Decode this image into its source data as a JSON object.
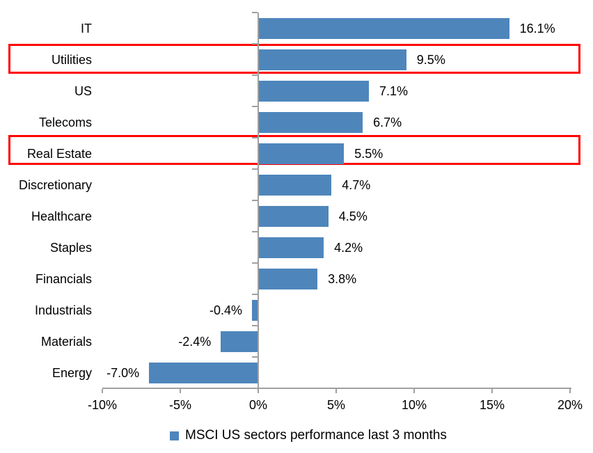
{
  "chart_data": {
    "type": "bar",
    "orientation": "horizontal",
    "title": "",
    "categories": [
      "IT",
      "Utilities",
      "US",
      "Telecoms",
      "Real Estate",
      "Discretionary",
      "Healthcare",
      "Staples",
      "Financials",
      "Industrials",
      "Materials",
      "Energy"
    ],
    "values": [
      16.1,
      9.5,
      7.1,
      6.7,
      5.5,
      4.7,
      4.5,
      4.2,
      3.8,
      -0.4,
      -2.4,
      -7.0
    ],
    "value_labels": [
      "16.1%",
      "9.5%",
      "7.1%",
      "6.7%",
      "5.5%",
      "4.7%",
      "4.5%",
      "4.2%",
      "3.8%",
      "-0.4%",
      "-2.4%",
      "-7.0%"
    ],
    "x_axis": {
      "min": -10,
      "max": 20,
      "tick_values": [
        -10,
        -5,
        0,
        5,
        10,
        15,
        20
      ],
      "tick_labels": [
        "-10%",
        "-5%",
        "0%",
        "5%",
        "10%",
        "15%",
        "20%"
      ]
    },
    "legend": {
      "label": "MSCI US sectors performance last 3 months",
      "position": "bottom"
    },
    "highlighted_categories": [
      "Utilities",
      "Real Estate"
    ],
    "colors": {
      "bar": "#4E86BC",
      "highlight_box": "#FF0000",
      "axis": "#A0A0A0",
      "text": "#000000",
      "background": "#FFFFFF"
    },
    "grid": false
  }
}
